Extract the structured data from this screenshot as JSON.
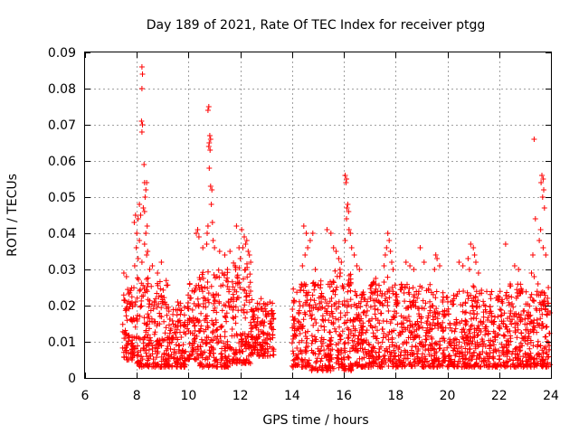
{
  "chart_data": {
    "type": "scatter",
    "title": "Day 189 of 2021, Rate Of TEC Index for receiver ptgg",
    "xlabel": "GPS time / hours",
    "ylabel": "ROTI / TECUs",
    "xlim": [
      6,
      24
    ],
    "ylim": [
      0,
      0.09
    ],
    "xticks": [
      "6",
      "8",
      "10",
      "12",
      "14",
      "16",
      "18",
      "20",
      "22",
      "24"
    ],
    "yticks": [
      "0",
      "0.01",
      "0.02",
      "0.03",
      "0.04",
      "0.05",
      "0.06",
      "0.07",
      "0.08",
      "0.09"
    ],
    "grid": true,
    "marker": "plus",
    "color": "#ff0000",
    "series": [
      {
        "points": [
          [
            8.2,
            0.086
          ],
          [
            8.22,
            0.084
          ],
          [
            8.2,
            0.08
          ],
          [
            8.18,
            0.071
          ],
          [
            8.22,
            0.07
          ],
          [
            8.2,
            0.068
          ],
          [
            8.28,
            0.059
          ],
          [
            8.3,
            0.054
          ],
          [
            8.38,
            0.054
          ],
          [
            8.35,
            0.052
          ],
          [
            8.32,
            0.05
          ],
          [
            8.1,
            0.048
          ],
          [
            8.25,
            0.047
          ],
          [
            8.15,
            0.045
          ],
          [
            8.05,
            0.044
          ],
          [
            8.3,
            0.046
          ],
          [
            7.95,
            0.045
          ],
          [
            7.9,
            0.043
          ],
          [
            8.4,
            0.042
          ],
          [
            8.35,
            0.04
          ],
          [
            8.0,
            0.04
          ],
          [
            8.1,
            0.038
          ],
          [
            8.3,
            0.037
          ],
          [
            7.98,
            0.036
          ],
          [
            8.42,
            0.035
          ],
          [
            8.38,
            0.034
          ],
          [
            8.05,
            0.033
          ],
          [
            8.2,
            0.032
          ],
          [
            7.92,
            0.031
          ],
          [
            8.95,
            0.032
          ],
          [
            8.6,
            0.031
          ],
          [
            8.5,
            0.03
          ],
          [
            8.8,
            0.029
          ],
          [
            7.5,
            0.029
          ],
          [
            7.6,
            0.028
          ],
          [
            10.78,
            0.075
          ],
          [
            10.75,
            0.074
          ],
          [
            10.82,
            0.067
          ],
          [
            10.8,
            0.065
          ],
          [
            10.85,
            0.066
          ],
          [
            10.78,
            0.064
          ],
          [
            10.83,
            0.063
          ],
          [
            10.8,
            0.058
          ],
          [
            10.85,
            0.053
          ],
          [
            10.9,
            0.052
          ],
          [
            10.88,
            0.048
          ],
          [
            10.92,
            0.043
          ],
          [
            10.75,
            0.042
          ],
          [
            10.72,
            0.04
          ],
          [
            10.35,
            0.041
          ],
          [
            10.3,
            0.04
          ],
          [
            10.4,
            0.039
          ],
          [
            10.95,
            0.038
          ],
          [
            10.7,
            0.037
          ],
          [
            10.55,
            0.036
          ],
          [
            11.0,
            0.036
          ],
          [
            11.2,
            0.035
          ],
          [
            11.4,
            0.034
          ],
          [
            11.6,
            0.035
          ],
          [
            11.85,
            0.042
          ],
          [
            12.05,
            0.041
          ],
          [
            12.15,
            0.039
          ],
          [
            12.25,
            0.038
          ],
          [
            12.2,
            0.037
          ],
          [
            12.1,
            0.036
          ],
          [
            11.95,
            0.036
          ],
          [
            12.3,
            0.035
          ],
          [
            12.35,
            0.034
          ],
          [
            12.0,
            0.033
          ],
          [
            12.4,
            0.032
          ],
          [
            11.8,
            0.031
          ],
          [
            11.5,
            0.03
          ],
          [
            11.3,
            0.029
          ],
          [
            11.1,
            0.028
          ],
          [
            14.45,
            0.042
          ],
          [
            14.55,
            0.04
          ],
          [
            14.8,
            0.04
          ],
          [
            14.7,
            0.038
          ],
          [
            14.6,
            0.036
          ],
          [
            14.5,
            0.034
          ],
          [
            14.4,
            0.031
          ],
          [
            14.9,
            0.03
          ],
          [
            15.35,
            0.041
          ],
          [
            15.5,
            0.04
          ],
          [
            15.6,
            0.036
          ],
          [
            15.7,
            0.035
          ],
          [
            15.8,
            0.033
          ],
          [
            15.9,
            0.032
          ],
          [
            15.85,
            0.03
          ],
          [
            16.05,
            0.056
          ],
          [
            16.1,
            0.055
          ],
          [
            16.08,
            0.054
          ],
          [
            16.15,
            0.048
          ],
          [
            16.12,
            0.047
          ],
          [
            16.18,
            0.046
          ],
          [
            16.1,
            0.044
          ],
          [
            16.2,
            0.041
          ],
          [
            16.25,
            0.04
          ],
          [
            16.05,
            0.038
          ],
          [
            16.3,
            0.036
          ],
          [
            16.4,
            0.034
          ],
          [
            16.5,
            0.031
          ],
          [
            16.6,
            0.03
          ],
          [
            17.7,
            0.04
          ],
          [
            17.75,
            0.038
          ],
          [
            17.65,
            0.036
          ],
          [
            17.8,
            0.035
          ],
          [
            17.6,
            0.034
          ],
          [
            17.85,
            0.032
          ],
          [
            17.55,
            0.031
          ],
          [
            17.9,
            0.03
          ],
          [
            18.4,
            0.032
          ],
          [
            18.55,
            0.031
          ],
          [
            18.7,
            0.03
          ],
          [
            18.95,
            0.036
          ],
          [
            19.1,
            0.032
          ],
          [
            19.55,
            0.034
          ],
          [
            19.6,
            0.033
          ],
          [
            19.7,
            0.031
          ],
          [
            19.5,
            0.03
          ],
          [
            20.45,
            0.032
          ],
          [
            20.6,
            0.031
          ],
          [
            20.8,
            0.033
          ],
          [
            20.9,
            0.037
          ],
          [
            21.0,
            0.036
          ],
          [
            21.05,
            0.034
          ],
          [
            21.1,
            0.032
          ],
          [
            20.85,
            0.03
          ],
          [
            21.2,
            0.029
          ],
          [
            22.25,
            0.037
          ],
          [
            22.6,
            0.031
          ],
          [
            22.75,
            0.03
          ],
          [
            23.35,
            0.066
          ],
          [
            23.65,
            0.056
          ],
          [
            23.7,
            0.055
          ],
          [
            23.62,
            0.054
          ],
          [
            23.72,
            0.052
          ],
          [
            23.68,
            0.05
          ],
          [
            23.75,
            0.047
          ],
          [
            23.4,
            0.044
          ],
          [
            23.6,
            0.041
          ],
          [
            23.55,
            0.038
          ],
          [
            23.7,
            0.036
          ],
          [
            23.8,
            0.034
          ],
          [
            23.3,
            0.034
          ],
          [
            23.25,
            0.029
          ],
          [
            23.35,
            0.028
          ],
          [
            23.5,
            0.026
          ],
          [
            23.9,
            0.025
          ],
          [
            23.45,
            0.023
          ]
        ],
        "dense_bands": [
          {
            "x": [
              7.45,
              8.0
            ],
            "y": [
              0.005,
              0.025
            ]
          },
          {
            "x": [
              8.0,
              8.6
            ],
            "y": [
              0.003,
              0.028
            ]
          },
          {
            "x": [
              8.6,
              9.2
            ],
            "y": [
              0.003,
              0.027
            ]
          },
          {
            "x": [
              9.2,
              9.9
            ],
            "y": [
              0.003,
              0.022
            ]
          },
          {
            "x": [
              9.95,
              10.4
            ],
            "y": [
              0.005,
              0.027
            ]
          },
          {
            "x": [
              10.4,
              11.0
            ],
            "y": [
              0.003,
              0.031
            ]
          },
          {
            "x": [
              11.0,
              11.6
            ],
            "y": [
              0.003,
              0.03
            ]
          },
          {
            "x": [
              11.6,
              12.4
            ],
            "y": [
              0.004,
              0.032
            ]
          },
          {
            "x": [
              12.4,
              13.3
            ],
            "y": [
              0.006,
              0.022
            ]
          },
          {
            "x": [
              14.0,
              14.7
            ],
            "y": [
              0.003,
              0.026
            ]
          },
          {
            "x": [
              14.7,
              15.5
            ],
            "y": [
              0.002,
              0.027
            ]
          },
          {
            "x": [
              15.5,
              16.3
            ],
            "y": [
              0.002,
              0.03
            ]
          },
          {
            "x": [
              16.3,
              17.0
            ],
            "y": [
              0.003,
              0.024
            ]
          },
          {
            "x": [
              17.0,
              17.8
            ],
            "y": [
              0.003,
              0.028
            ]
          },
          {
            "x": [
              17.8,
              18.6
            ],
            "y": [
              0.003,
              0.026
            ]
          },
          {
            "x": [
              18.6,
              19.4
            ],
            "y": [
              0.003,
              0.026
            ]
          },
          {
            "x": [
              19.4,
              20.1
            ],
            "y": [
              0.003,
              0.024
            ]
          },
          {
            "x": [
              20.1,
              20.8
            ],
            "y": [
              0.003,
              0.024
            ]
          },
          {
            "x": [
              20.8,
              21.6
            ],
            "y": [
              0.003,
              0.026
            ]
          },
          {
            "x": [
              21.6,
              22.4
            ],
            "y": [
              0.003,
              0.024
            ]
          },
          {
            "x": [
              22.4,
              23.2
            ],
            "y": [
              0.003,
              0.026
            ]
          },
          {
            "x": [
              23.2,
              23.98
            ],
            "y": [
              0.003,
              0.024
            ]
          }
        ]
      }
    ]
  }
}
